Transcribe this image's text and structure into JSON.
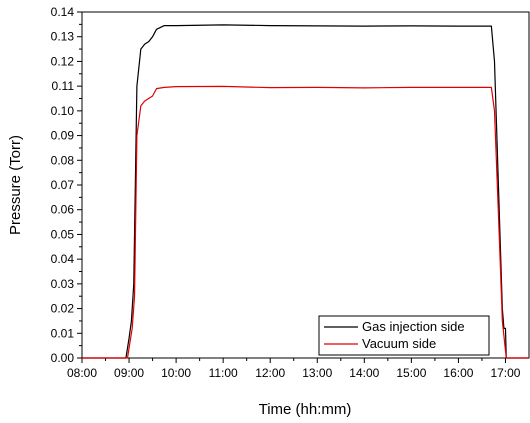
{
  "chart_data": {
    "type": "line",
    "xlabel": "Time (hh:mm)",
    "ylabel": "Pressure (Torr)",
    "xlim": [
      "08:00",
      "17:30"
    ],
    "ylim": [
      0,
      0.14
    ],
    "x_ticks": [
      "08:00",
      "09:00",
      "10:00",
      "11:00",
      "12:00",
      "13:00",
      "14:00",
      "15:00",
      "16:00",
      "17:00"
    ],
    "y_ticks": [
      "0.00",
      "0.01",
      "0.02",
      "0.03",
      "0.04",
      "0.05",
      "0.06",
      "0.07",
      "0.08",
      "0.09",
      "0.10",
      "0.11",
      "0.12",
      "0.13",
      "0.14"
    ],
    "grid": false,
    "legend_position": "bottom-right",
    "series": [
      {
        "name": "Gas injection side",
        "color": "#000000",
        "x": [
          "08:00",
          "08:56",
          "09:00",
          "09:03",
          "09:06",
          "09:10",
          "09:15",
          "09:20",
          "09:25",
          "09:30",
          "09:35",
          "09:45",
          "10:00",
          "11:00",
          "12:00",
          "13:00",
          "14:00",
          "15:00",
          "16:00",
          "16:42",
          "16:46",
          "16:52",
          "16:56",
          "16:58",
          "17:00",
          "17:01",
          "17:30"
        ],
        "values": [
          0,
          0,
          0.008,
          0.015,
          0.03,
          0.11,
          0.125,
          0.127,
          0.128,
          0.13,
          0.133,
          0.1345,
          0.1345,
          0.1348,
          0.1345,
          0.1344,
          0.1343,
          0.1344,
          0.1343,
          0.1343,
          0.12,
          0.06,
          0.02,
          0.012,
          0.012,
          0,
          0
        ]
      },
      {
        "name": "Vacuum side",
        "color": "#e00000",
        "x": [
          "08:00",
          "08:58",
          "09:00",
          "09:04",
          "09:07",
          "09:10",
          "09:15",
          "09:20",
          "09:25",
          "09:30",
          "09:35",
          "09:45",
          "10:00",
          "11:00",
          "12:00",
          "13:00",
          "14:00",
          "15:00",
          "16:00",
          "16:42",
          "16:46",
          "16:52",
          "16:56",
          "16:58",
          "17:00",
          "17:01",
          "17:30"
        ],
        "values": [
          0,
          0,
          0.004,
          0.012,
          0.025,
          0.09,
          0.102,
          0.104,
          0.105,
          0.106,
          0.109,
          0.1095,
          0.1098,
          0.1099,
          0.1094,
          0.1095,
          0.1093,
          0.1095,
          0.1095,
          0.1095,
          0.1,
          0.05,
          0.015,
          0.009,
          0.003,
          0,
          0
        ]
      }
    ]
  }
}
